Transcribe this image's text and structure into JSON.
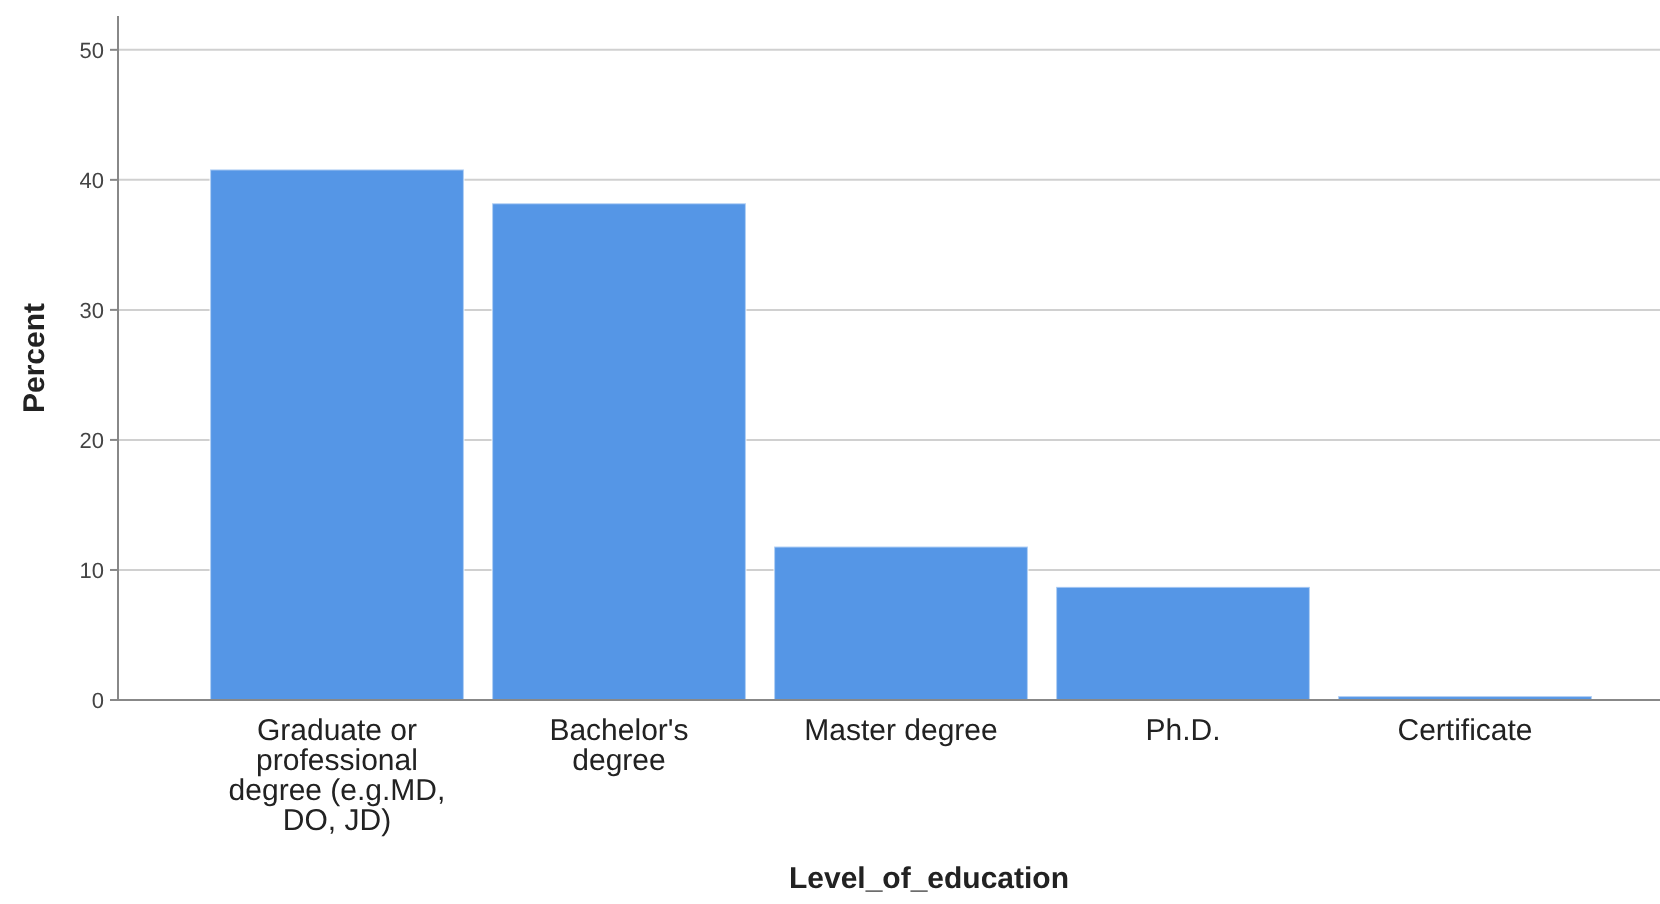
{
  "chart_data": {
    "type": "bar",
    "xlabel": "Level_of_education",
    "ylabel": "Percent",
    "categories": [
      "Graduate or professional degree (e.g.MD, DO, JD)",
      "Bachelor's degree",
      "Master degree",
      "Ph.D.",
      "Certificate"
    ],
    "values": [
      40.8,
      38.2,
      11.8,
      8.7,
      0.3
    ],
    "color": "#5596e6",
    "ylim": [
      0,
      52.6
    ],
    "yticks": [
      0,
      10,
      20,
      30,
      40,
      50
    ],
    "grid": "y"
  }
}
